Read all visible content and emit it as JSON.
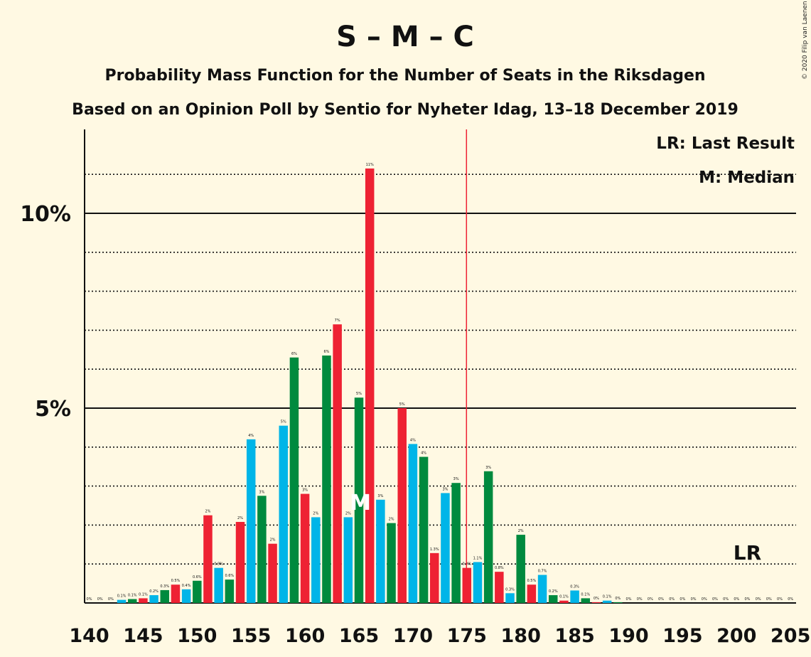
{
  "credit": "© 2020 Filip van Laenen",
  "chart_data": {
    "type": "bar",
    "title": "S – M – C",
    "subtitle": "Probability Mass Function for the Number of Seats in the Riksdagen",
    "subtitle2": "Based on an Opinion Poll by Sentio for Nyheter Idag, 13–18 December 2019",
    "xlabel": "",
    "ylabel": "",
    "ylim": [
      0,
      12
    ],
    "xlim": [
      140,
      205
    ],
    "x_ticks": [
      "140",
      "145",
      "150",
      "155",
      "160",
      "165",
      "170",
      "175",
      "180",
      "185",
      "190",
      "195",
      "200",
      "205"
    ],
    "y_ticks": [
      {
        "value": 5,
        "label": "5%"
      },
      {
        "value": 10,
        "label": "10%"
      }
    ],
    "grid": true,
    "legend": {
      "position": "top-right",
      "entries": [
        "LR: Last Result",
        "M: Median"
      ]
    },
    "colors": {
      "cyan": "#00B5E8",
      "green": "#008A3E",
      "red": "#EE2233",
      "majority_line": "#EE2233",
      "background": "#FFF9E3"
    },
    "majority_line_x": 175,
    "last_result": {
      "x": 201,
      "label": "LR"
    },
    "median": {
      "x": 165,
      "label": "M"
    },
    "bars": [
      {
        "x": 140,
        "value": 0.0,
        "label": "0%"
      },
      {
        "x": 141,
        "value": 0.0,
        "label": "0%"
      },
      {
        "x": 142,
        "value": 0.0,
        "label": "0%"
      },
      {
        "x": 143,
        "value": 0.08,
        "label": "0.1%"
      },
      {
        "x": 144,
        "value": 0.1,
        "label": "0.1%"
      },
      {
        "x": 145,
        "value": 0.12,
        "label": "0.1%"
      },
      {
        "x": 146,
        "value": 0.2,
        "label": "0.2%"
      },
      {
        "x": 147,
        "value": 0.33,
        "label": "0.3%"
      },
      {
        "x": 148,
        "value": 0.47,
        "label": "0.5%"
      },
      {
        "x": 149,
        "value": 0.35,
        "label": "0.4%"
      },
      {
        "x": 150,
        "value": 0.57,
        "label": "0.6%"
      },
      {
        "x": 151,
        "value": 2.25,
        "label": "2%"
      },
      {
        "x": 152,
        "value": 0.9,
        "label": "0.9%"
      },
      {
        "x": 153,
        "value": 0.6,
        "label": "0.6%"
      },
      {
        "x": 154,
        "value": 2.08,
        "label": "2%"
      },
      {
        "x": 155,
        "value": 4.2,
        "label": "4%"
      },
      {
        "x": 156,
        "value": 2.75,
        "label": "3%"
      },
      {
        "x": 157,
        "value": 1.52,
        "label": "2%"
      },
      {
        "x": 158,
        "value": 4.55,
        "label": "5%"
      },
      {
        "x": 159,
        "value": 6.3,
        "label": "6%"
      },
      {
        "x": 160,
        "value": 2.8,
        "label": "3%"
      },
      {
        "x": 161,
        "value": 2.2,
        "label": "2%"
      },
      {
        "x": 162,
        "value": 6.35,
        "label": "6%"
      },
      {
        "x": 163,
        "value": 7.15,
        "label": "7%"
      },
      {
        "x": 164,
        "value": 2.2,
        "label": "2%"
      },
      {
        "x": 165,
        "value": 5.27,
        "label": "5%"
      },
      {
        "x": 166,
        "value": 11.15,
        "label": "11%"
      },
      {
        "x": 167,
        "value": 2.65,
        "label": "3%"
      },
      {
        "x": 168,
        "value": 2.05,
        "label": "2%"
      },
      {
        "x": 169,
        "value": 5.0,
        "label": "5%"
      },
      {
        "x": 170,
        "value": 4.08,
        "label": "4%"
      },
      {
        "x": 171,
        "value": 3.75,
        "label": "4%"
      },
      {
        "x": 172,
        "value": 1.28,
        "label": "1.3%"
      },
      {
        "x": 173,
        "value": 2.82,
        "label": "3%"
      },
      {
        "x": 174,
        "value": 3.08,
        "label": "3%"
      },
      {
        "x": 175,
        "value": 0.9,
        "label": "0.9%"
      },
      {
        "x": 176,
        "value": 1.05,
        "label": "1.1%"
      },
      {
        "x": 177,
        "value": 3.38,
        "label": "3%"
      },
      {
        "x": 178,
        "value": 0.8,
        "label": "0.8%"
      },
      {
        "x": 179,
        "value": 0.25,
        "label": "0.3%"
      },
      {
        "x": 180,
        "value": 1.75,
        "label": "2%"
      },
      {
        "x": 181,
        "value": 0.47,
        "label": "0.5%"
      },
      {
        "x": 182,
        "value": 0.72,
        "label": "0.7%"
      },
      {
        "x": 183,
        "value": 0.2,
        "label": "0.2%"
      },
      {
        "x": 184,
        "value": 0.06,
        "label": "0.1%"
      },
      {
        "x": 185,
        "value": 0.32,
        "label": "0.3%"
      },
      {
        "x": 186,
        "value": 0.12,
        "label": "0.1%"
      },
      {
        "x": 187,
        "value": 0.02,
        "label": "0%"
      },
      {
        "x": 188,
        "value": 0.06,
        "label": "0.1%"
      },
      {
        "x": 189,
        "value": 0.02,
        "label": "0%"
      },
      {
        "x": 190,
        "value": 0.0,
        "label": "0%"
      },
      {
        "x": 191,
        "value": 0.0,
        "label": "0%"
      },
      {
        "x": 192,
        "value": 0.0,
        "label": "0%"
      },
      {
        "x": 193,
        "value": 0.0,
        "label": "0%"
      },
      {
        "x": 194,
        "value": 0.0,
        "label": "0%"
      },
      {
        "x": 195,
        "value": 0.0,
        "label": "0%"
      },
      {
        "x": 196,
        "value": 0.0,
        "label": "0%"
      },
      {
        "x": 197,
        "value": 0.0,
        "label": "0%"
      },
      {
        "x": 198,
        "value": 0.0,
        "label": "0%"
      },
      {
        "x": 199,
        "value": 0.0,
        "label": "0%"
      },
      {
        "x": 200,
        "value": 0.0,
        "label": "0%"
      },
      {
        "x": 201,
        "value": 0.0,
        "label": "0%"
      },
      {
        "x": 202,
        "value": 0.0,
        "label": "0%"
      },
      {
        "x": 203,
        "value": 0.0,
        "label": "0%"
      },
      {
        "x": 204,
        "value": 0.0,
        "label": "0%"
      },
      {
        "x": 205,
        "value": 0.0,
        "label": "0%"
      }
    ]
  }
}
